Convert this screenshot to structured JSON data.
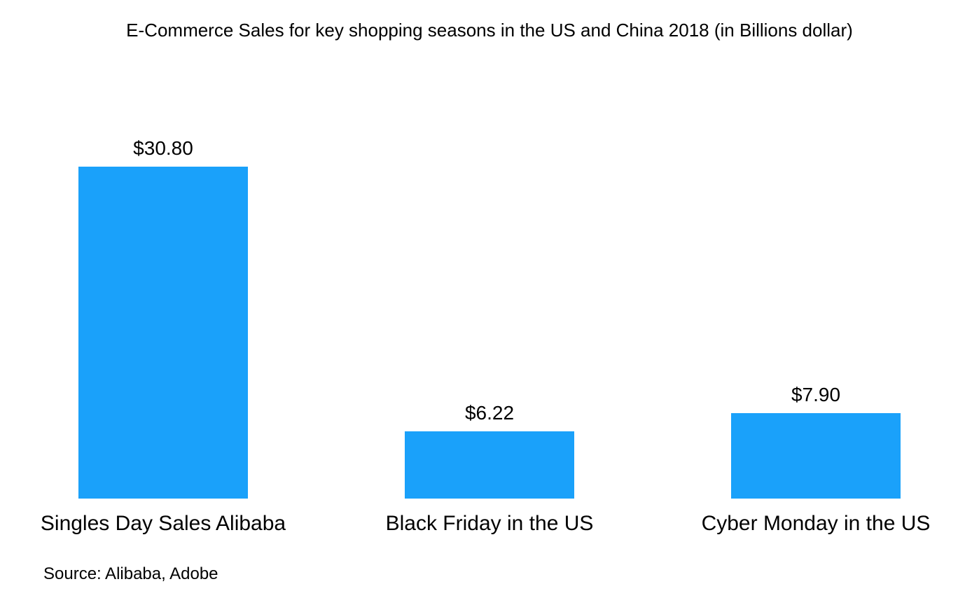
{
  "title": "E-Commerce Sales for key shopping seasons in the US and China 2018 (in Billions dollar)",
  "source": "Source: Alibaba, Adobe",
  "chart_data": {
    "type": "bar",
    "title": "E-Commerce Sales for key shopping seasons in the US and China 2018 (in Billions dollar)",
    "categories": [
      "Singles Day Sales Alibaba",
      "Black Friday in the US",
      "Cyber Monday in the US"
    ],
    "values": [
      30.8,
      6.22,
      7.9
    ],
    "value_labels": [
      "$30.80",
      "$6.22",
      "$7.90"
    ],
    "xlabel": "",
    "ylabel": "",
    "ylim": [
      0,
      30.8
    ],
    "grid": false,
    "legend": false,
    "axes_visible": false,
    "bar_color": "#1AA1FA",
    "text_color": "#000000",
    "source": "Source: Alibaba, Adobe"
  }
}
